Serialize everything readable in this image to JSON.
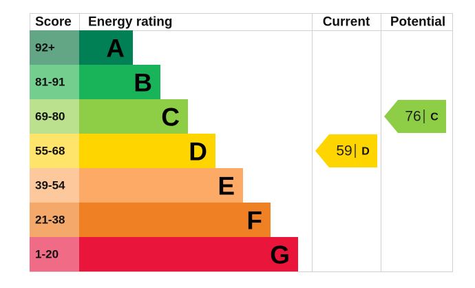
{
  "header": {
    "score": "Score",
    "rating": "Energy rating",
    "current": "Current",
    "potential": "Potential"
  },
  "bands": [
    {
      "score": "92+",
      "letter": "A",
      "color": "#008054",
      "score_color": "#62a686"
    },
    {
      "score": "81-91",
      "letter": "B",
      "color": "#19b459",
      "score_color": "#74cf8e"
    },
    {
      "score": "69-80",
      "letter": "C",
      "color": "#8dce46",
      "score_color": "#bbe08e"
    },
    {
      "score": "55-68",
      "letter": "D",
      "color": "#ffd500",
      "score_color": "#ffe46b"
    },
    {
      "score": "39-54",
      "letter": "E",
      "color": "#fcaa65",
      "score_color": "#fdc99c"
    },
    {
      "score": "21-38",
      "letter": "F",
      "color": "#ef8023",
      "score_color": "#f4a96b"
    },
    {
      "score": "1-20",
      "letter": "G",
      "color": "#e9153b",
      "score_color": "#ef6b86"
    }
  ],
  "current": {
    "value": 59,
    "letter": "D",
    "color": "#ffd500"
  },
  "potential": {
    "value": 76,
    "letter": "C",
    "color": "#8dce46"
  }
}
